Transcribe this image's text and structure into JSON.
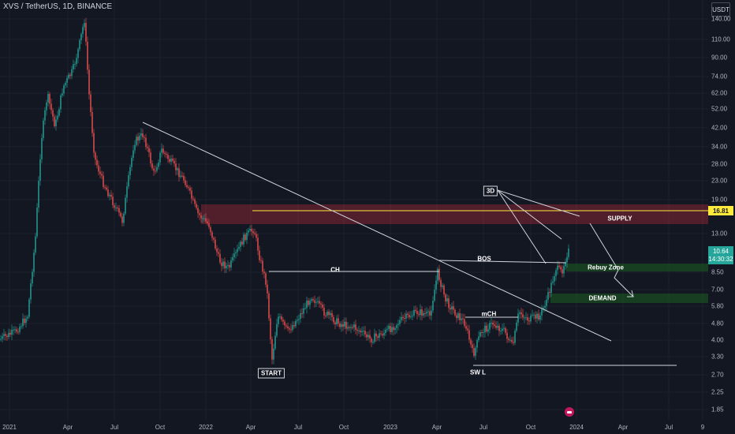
{
  "header": {
    "symbol_title": "XVS / TetherUS, 1D, BINANCE",
    "currency_button": "USDT"
  },
  "price_axis": {
    "labels": [
      "140.00",
      "110.00",
      "90.00",
      "74.00",
      "62.00",
      "52.00",
      "42.00",
      "34.00",
      "28.00",
      "23.00",
      "19.00",
      "13.00",
      "8.50",
      "7.00",
      "5.80",
      "4.80",
      "4.00",
      "3.30",
      "2.70",
      "2.25",
      "1.85"
    ],
    "marker_supply": "16.81",
    "last_price": "10.64",
    "countdown": "14:30:32"
  },
  "time_axis": {
    "labels": [
      "2021",
      "Apr",
      "Jul",
      "Oct",
      "2022",
      "Apr",
      "Jul",
      "Oct",
      "2023",
      "Apr",
      "Jul",
      "Oct",
      "2024",
      "Apr",
      "Jul",
      "9"
    ]
  },
  "annotations": {
    "supply": "SUPPLY",
    "rebuy_zone": "Rebuy Zone",
    "demand": "DEMAND",
    "bos": "BOS",
    "ch": "CH",
    "mch": "mCH",
    "start": "START",
    "swl": "SW L",
    "three_d": "3D"
  },
  "colors": {
    "background": "#131722",
    "up": "#26a69a",
    "down": "#ef5350",
    "supply_zone": "#f23645",
    "demand_zone": "#1b5e20",
    "drawing": "#d1d4dc",
    "marker": "#ffeb3b"
  },
  "icons": {
    "event": "us-flag-event-icon"
  }
}
